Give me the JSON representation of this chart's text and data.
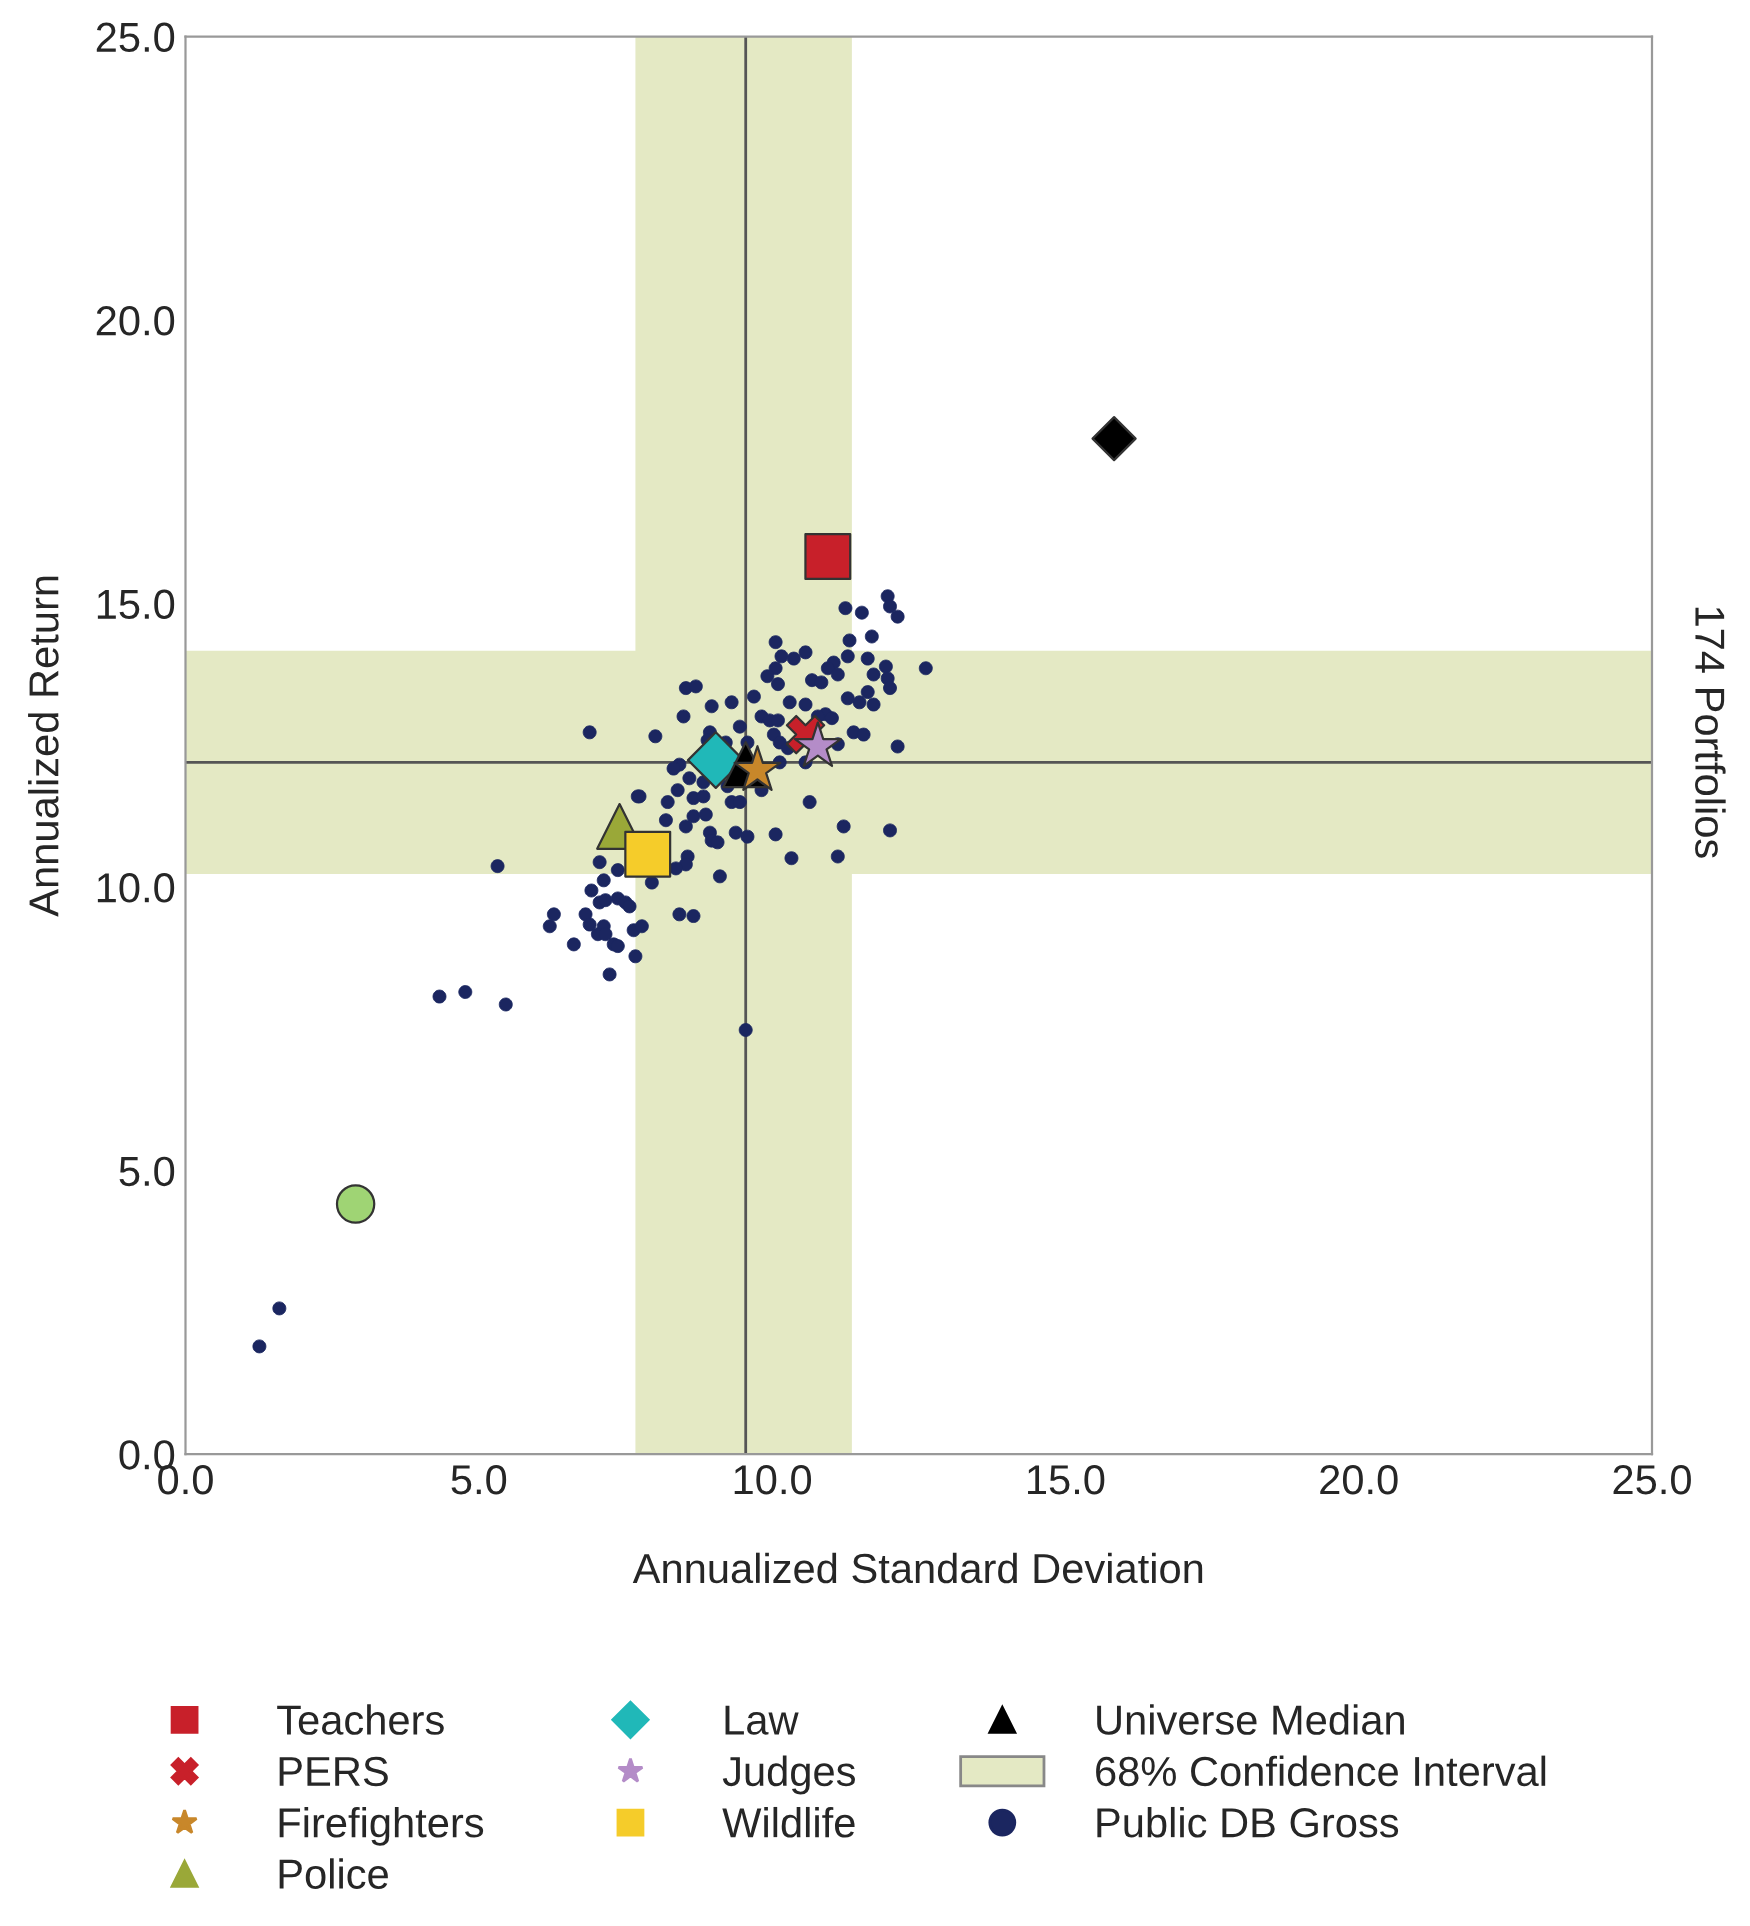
{
  "chart_data": {
    "type": "scatter",
    "xlabel": "Annualized Standard Deviation",
    "ylabel": "Annualized Return",
    "annotations": [
      "174 Portfolios"
    ],
    "xlim": [
      0,
      25
    ],
    "ylim": [
      0,
      25
    ],
    "xticks": [
      {
        "value": 0,
        "label": "0.0"
      },
      {
        "value": 5,
        "label": "5.0"
      },
      {
        "value": 10,
        "label": "10.0"
      },
      {
        "value": 15,
        "label": "15.0"
      },
      {
        "value": 20,
        "label": "20.0"
      },
      {
        "value": 25,
        "label": "25.0"
      }
    ],
    "yticks": [
      {
        "value": 0,
        "label": "0.0"
      },
      {
        "value": 5,
        "label": "5.0"
      },
      {
        "value": 10,
        "label": "10.0"
      },
      {
        "value": 15,
        "label": "15.0"
      },
      {
        "value": 20,
        "label": "20.0"
      },
      {
        "value": 25,
        "label": "25.0"
      }
    ],
    "grid": false,
    "legend": "bottom",
    "bands": [
      {
        "axis": "x",
        "from": 7.67,
        "to": 11.36,
        "label": "68% Confidence Interval",
        "color": "#e4e9c4"
      },
      {
        "axis": "y",
        "from": 10.23,
        "to": 14.17,
        "color": "#e4e9c4"
      }
    ],
    "ref_lines": [
      {
        "axis": "x",
        "value": 9.55,
        "color": "#555555"
      },
      {
        "axis": "y",
        "value": 12.2,
        "color": "#555555"
      }
    ],
    "series": [
      {
        "name": "Public DB Gross",
        "color": "#1b2660",
        "marker": "circle",
        "x": [
          1.26,
          1.6,
          4.33,
          4.77,
          5.46,
          5.32,
          6.89,
          8.01,
          7.71,
          7.06,
          7.37,
          7.13,
          7.95,
          6.92,
          7.06,
          7.16,
          7.37,
          7.5,
          7.57,
          6.28,
          6.21,
          6.82,
          6.89,
          7.13,
          7.03,
          7.16,
          7.64,
          7.78,
          6.62,
          7.3,
          7.37,
          7.67,
          7.23,
          11.97,
          12.01,
          12.14,
          11.25,
          11.53,
          11.7,
          11.32,
          10.06,
          10.57,
          10.37,
          10.16,
          11.63,
          12.62,
          11.94,
          11.05,
          10.95,
          11.12,
          11.29,
          10.06,
          9.92,
          10.1,
          10.68,
          10.84,
          11.97,
          12.01,
          11.73,
          8.53,
          8.7,
          9.69,
          9.31,
          8.97,
          10.3,
          10.57,
          11.29,
          11.49,
          11.63,
          11.73,
          10.91,
          11.02,
          10.78,
          9.82,
          9.96,
          10.1,
          8.49,
          9.45,
          8.94,
          9.21,
          9.58,
          10.03,
          10.13,
          10.27,
          11.39,
          11.56,
          12.14,
          11.12,
          8.9,
          8.42,
          8.32,
          10.57,
          10.13,
          8.59,
          8.83,
          8.39,
          7.74,
          8.22,
          8.66,
          8.83,
          9.24,
          9.82,
          9.31,
          9.45,
          8.19,
          8.66,
          8.87,
          8.53,
          8.94,
          9.38,
          9.58,
          8.97,
          9.07,
          10.06,
          10.64,
          11.22,
          12.01,
          10.33,
          11.12,
          8.56,
          8.53,
          8.36,
          9.11,
          8.42,
          8.66,
          9.55
        ],
        "values": [
          1.9,
          2.57,
          8.07,
          8.15,
          7.93,
          10.37,
          12.73,
          12.66,
          11.6,
          10.44,
          10.3,
          10.12,
          10.08,
          9.94,
          9.73,
          9.77,
          9.8,
          9.73,
          9.66,
          9.52,
          9.31,
          9.52,
          9.34,
          9.31,
          9.17,
          9.17,
          9.24,
          9.31,
          8.99,
          8.99,
          8.96,
          8.78,
          8.46,
          15.13,
          14.95,
          14.77,
          14.92,
          14.84,
          14.42,
          14.35,
          14.32,
          14.14,
          14.03,
          14.07,
          14.03,
          13.86,
          13.89,
          13.96,
          13.86,
          13.75,
          14.07,
          13.86,
          13.72,
          13.58,
          13.65,
          13.61,
          13.68,
          13.51,
          13.75,
          13.51,
          13.54,
          13.36,
          13.26,
          13.19,
          13.26,
          13.22,
          13.33,
          13.26,
          13.44,
          13.22,
          13.05,
          12.98,
          13.01,
          13.01,
          12.94,
          12.94,
          13.01,
          12.83,
          12.73,
          12.55,
          12.55,
          12.69,
          12.55,
          12.45,
          12.73,
          12.69,
          12.48,
          12.52,
          12.59,
          12.16,
          12.09,
          12.2,
          12.2,
          11.92,
          11.85,
          11.71,
          11.6,
          11.5,
          11.57,
          11.6,
          11.78,
          11.71,
          11.5,
          11.5,
          11.18,
          11.25,
          11.28,
          11.07,
          10.96,
          10.96,
          10.89,
          10.82,
          10.79,
          10.93,
          11.5,
          11.07,
          11.0,
          10.51,
          10.54,
          10.54,
          10.4,
          10.33,
          10.19,
          9.52,
          9.49,
          7.48
        ]
      },
      {
        "color": "#9fd474",
        "marker": "circle",
        "x": [
          2.9
        ],
        "values": [
          4.41
        ]
      },
      {
        "color": "#000000",
        "marker": "diamond",
        "x": [
          15.83
        ],
        "values": [
          17.91
        ]
      },
      {
        "name": "Teachers",
        "color": "#c8202a",
        "marker": "square",
        "x": [
          10.95
        ],
        "values": [
          15.83
        ]
      },
      {
        "name": "PERS",
        "color": "#c8202a",
        "marker": "cross",
        "x": [
          10.57
        ],
        "values": [
          12.69
        ]
      },
      {
        "name": "Firefighters",
        "color": "#c8872a",
        "marker": "star",
        "x": [
          9.75
        ],
        "values": [
          12.06
        ]
      },
      {
        "name": "Police",
        "color": "#9aa838",
        "marker": "triangle",
        "x": [
          7.4
        ],
        "values": [
          11.07
        ]
      },
      {
        "name": "Law",
        "color": "#20b8b8",
        "marker": "diamond",
        "x": [
          9.04
        ],
        "values": [
          12.24
        ]
      },
      {
        "name": "Judges",
        "color": "#b48cc8",
        "marker": "star",
        "x": [
          10.78
        ],
        "values": [
          12.48
        ]
      },
      {
        "name": "Wildlife",
        "color": "#f5cc2a",
        "marker": "square",
        "x": [
          7.88
        ],
        "values": [
          10.58
        ]
      },
      {
        "name": "Universe Median",
        "color": "#000000",
        "marker": "triangle",
        "x": [
          9.55
        ],
        "values": [
          12.16
        ]
      }
    ]
  }
}
